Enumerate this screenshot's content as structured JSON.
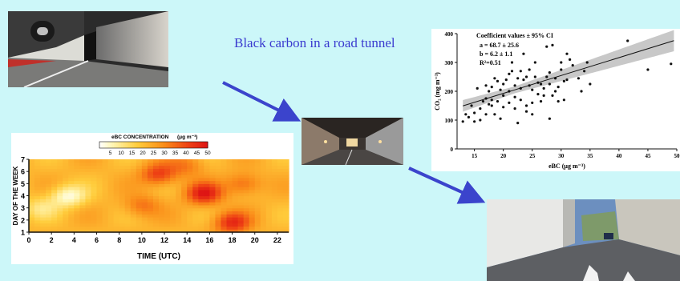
{
  "title": "Black carbon in a road tunnel",
  "colors": {
    "background": "#ccf7f9",
    "title": "#3a3acf",
    "arrow": "#3b44cc",
    "regression_band": "#c8c8c8"
  },
  "photos": [
    {
      "name": "tunnel-entrance-photo"
    },
    {
      "name": "tunnel-interior-photo"
    },
    {
      "name": "tunnel-exit-photo"
    }
  ],
  "chart_data": [
    {
      "type": "scatter",
      "title": "",
      "xlabel": "eBC (μg m⁻³)",
      "ylabel": "CO₂ (mg m⁻³)",
      "xlim": [
        12,
        50
      ],
      "ylim": [
        0,
        400
      ],
      "x_ticks": [
        "15",
        "20",
        "25",
        "30",
        "35",
        "40",
        "45",
        "50"
      ],
      "y_ticks": [
        "0",
        "100",
        "200",
        "300",
        "400"
      ],
      "annotation": {
        "heading": "Coefficient values ± 95% CI",
        "a": "a = 68.7 ± 25.6",
        "b": "b = 6.2 ± 1.1",
        "r2": "R²=0.51"
      },
      "fit": {
        "intercept": 68.7,
        "slope": 6.2
      },
      "grid": false,
      "points": [
        [
          13,
          95
        ],
        [
          13.5,
          120
        ],
        [
          14,
          110
        ],
        [
          14.5,
          150
        ],
        [
          15,
          125
        ],
        [
          15,
          95
        ],
        [
          15.5,
          210
        ],
        [
          16,
          140
        ],
        [
          16,
          100
        ],
        [
          16.5,
          165
        ],
        [
          17,
          175
        ],
        [
          17,
          220
        ],
        [
          17,
          120
        ],
        [
          17.5,
          200
        ],
        [
          17.5,
          155
        ],
        [
          18,
          215
        ],
        [
          18,
          150
        ],
        [
          18,
          170
        ],
        [
          18.5,
          120
        ],
        [
          18.5,
          245
        ],
        [
          19,
          165
        ],
        [
          19,
          235
        ],
        [
          19.5,
          105
        ],
        [
          19.5,
          205
        ],
        [
          20,
          225
        ],
        [
          20,
          145
        ],
        [
          20,
          185
        ],
        [
          20.5,
          240
        ],
        [
          21,
          260
        ],
        [
          21,
          200
        ],
        [
          21,
          160
        ],
        [
          21.5,
          270
        ],
        [
          21.5,
          300
        ],
        [
          22,
          220
        ],
        [
          22,
          180
        ],
        [
          22,
          140
        ],
        [
          22.5,
          245
        ],
        [
          22.5,
          90
        ],
        [
          23,
          210
        ],
        [
          23,
          270
        ],
        [
          23,
          170
        ],
        [
          23.5,
          330
        ],
        [
          23.5,
          240
        ],
        [
          24,
          250
        ],
        [
          24,
          150
        ],
        [
          24,
          130
        ],
        [
          24.5,
          220
        ],
        [
          24.5,
          275
        ],
        [
          25,
          160
        ],
        [
          25,
          205
        ],
        [
          25,
          120
        ],
        [
          25.5,
          300
        ],
        [
          25.5,
          250
        ],
        [
          26,
          190
        ],
        [
          26,
          230
        ],
        [
          26.5,
          225
        ],
        [
          26.5,
          165
        ],
        [
          27,
          210
        ],
        [
          27,
          185
        ],
        [
          27.5,
          250
        ],
        [
          27.5,
          355
        ],
        [
          28,
          225
        ],
        [
          28,
          105
        ],
        [
          28,
          265
        ],
        [
          28.5,
          360
        ],
        [
          28.5,
          185
        ],
        [
          29,
          200
        ],
        [
          29,
          245
        ],
        [
          29.5,
          215
        ],
        [
          29.5,
          165
        ],
        [
          30,
          300
        ],
        [
          30,
          275
        ],
        [
          30.5,
          235
        ],
        [
          30.5,
          170
        ],
        [
          31,
          240
        ],
        [
          31,
          330
        ],
        [
          31.5,
          310
        ],
        [
          32,
          290
        ],
        [
          33,
          245
        ],
        [
          33.5,
          200
        ],
        [
          34,
          270
        ],
        [
          34.5,
          300
        ],
        [
          35,
          225
        ],
        [
          41.5,
          375
        ],
        [
          45,
          275
        ],
        [
          49,
          295
        ]
      ]
    },
    {
      "type": "heatmap",
      "title": "",
      "xlabel": "TIME (UTC)",
      "ylabel": "DAY OF THE WEEK",
      "xlim": [
        0,
        23
      ],
      "ylim": [
        1,
        7
      ],
      "x_ticks": [
        "0",
        "2",
        "4",
        "6",
        "8",
        "10",
        "12",
        "14",
        "16",
        "18",
        "20",
        "22"
      ],
      "y_ticks": [
        "1",
        "2",
        "3",
        "4",
        "5",
        "6",
        "7"
      ],
      "colorbar": {
        "label": "eBC CONCENTRATION",
        "unit": "(μg m⁻³)",
        "ticks": [
          "5",
          "10",
          "15",
          "20",
          "25",
          "30",
          "35",
          "40",
          "45",
          "50"
        ],
        "range": [
          0,
          50
        ]
      },
      "hotspots": [
        {
          "x": 3.5,
          "y": 4.0,
          "value": 3
        },
        {
          "x": 1.0,
          "y": 3.0,
          "value": 12
        },
        {
          "x": 15.5,
          "y": 4.2,
          "value": 48
        },
        {
          "x": 18.0,
          "y": 1.8,
          "value": 45
        },
        {
          "x": 11.5,
          "y": 5.8,
          "value": 42
        },
        {
          "x": 10.0,
          "y": 3.2,
          "value": 34
        },
        {
          "x": 19.0,
          "y": 5.0,
          "value": 36
        },
        {
          "x": 14.0,
          "y": 6.5,
          "value": 32
        }
      ]
    }
  ]
}
